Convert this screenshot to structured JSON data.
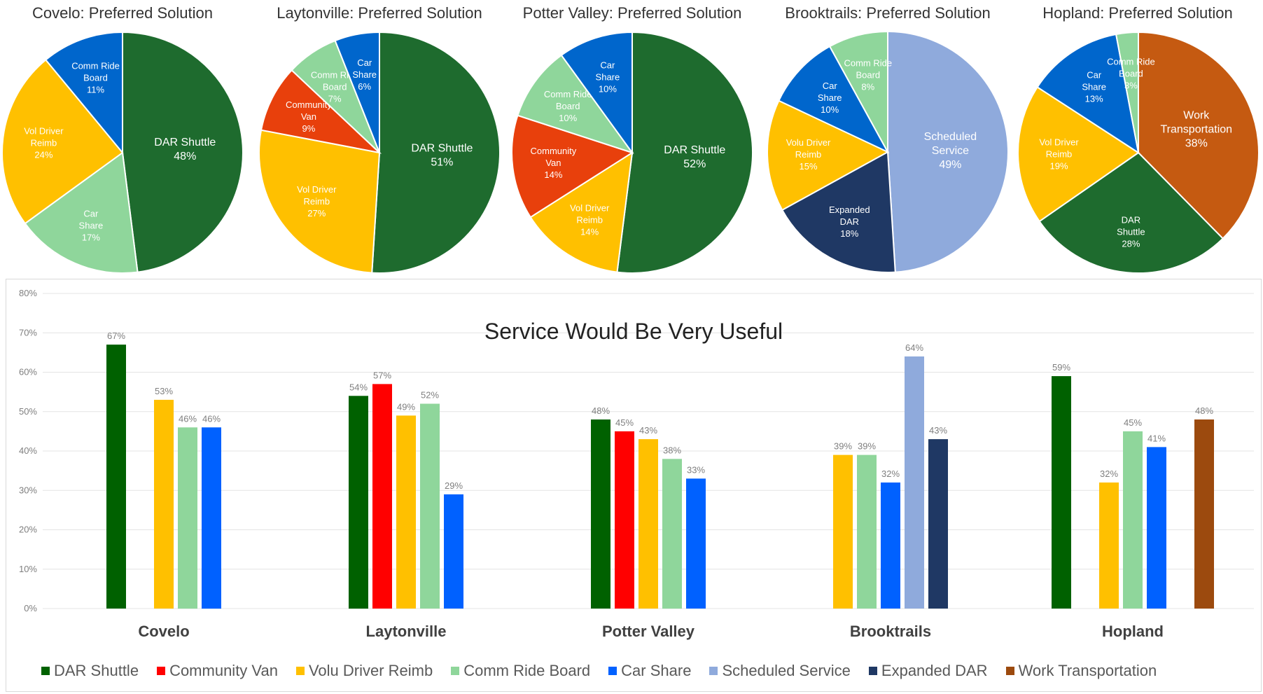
{
  "chart_data": [
    {
      "type": "pie",
      "title": "Covelo: Preferred Solution",
      "slices": [
        {
          "label": "DAR Shuttle",
          "value": 48,
          "display": "48%",
          "color": "#1e6b2e"
        },
        {
          "label": "Car Share",
          "value": 17,
          "display": "17%",
          "color": "#8fd69b"
        },
        {
          "label": "Vol Driver Reimb",
          "value": 24,
          "display": "24%",
          "color": "#ffc000"
        },
        {
          "label": "Comm Ride Board",
          "value": 11,
          "display": "11%",
          "color": "#0066cc"
        }
      ]
    },
    {
      "type": "pie",
      "title": "Laytonville: Preferred Solution",
      "slices": [
        {
          "label": "DAR Shuttle",
          "value": 51,
          "display": "51%",
          "color": "#1e6b2e"
        },
        {
          "label": "Vol Driver Reimb",
          "value": 27,
          "display": "27%",
          "color": "#ffc000"
        },
        {
          "label": "Community Van",
          "value": 9,
          "display": "9%",
          "color": "#e8400c"
        },
        {
          "label": "Comm Ride Board",
          "value": 7,
          "display": "7%",
          "color": "#8fd69b"
        },
        {
          "label": "Car Share",
          "value": 6,
          "display": "6%",
          "color": "#0066cc"
        }
      ]
    },
    {
      "type": "pie",
      "title": "Potter Valley: Preferred Solution",
      "slices": [
        {
          "label": "DAR Shuttle",
          "value": 52,
          "display": "52%",
          "color": "#1e6b2e"
        },
        {
          "label": "Vol Driver Reimb",
          "value": 14,
          "display": "14%",
          "color": "#ffc000"
        },
        {
          "label": "Community Van",
          "value": 14,
          "display": "14%",
          "color": "#e8400c"
        },
        {
          "label": "Comm Ride Board",
          "value": 10,
          "display": "10%",
          "color": "#8fd69b"
        },
        {
          "label": "Car Share",
          "value": 10,
          "display": "10%",
          "color": "#0066cc"
        }
      ]
    },
    {
      "type": "pie",
      "title": "Brooktrails: Preferred Solution",
      "slices": [
        {
          "label": "Scheduled Service",
          "value": 49,
          "display": "49%",
          "color": "#8faadc"
        },
        {
          "label": "Expanded DAR",
          "value": 18,
          "display": "18%",
          "color": "#1f3864"
        },
        {
          "label": "Volu Driver Reimb",
          "value": 15,
          "display": "15%",
          "color": "#ffc000"
        },
        {
          "label": "Car Share",
          "value": 10,
          "display": "10%",
          "color": "#0066cc"
        },
        {
          "label": "Comm Ride Board",
          "value": 8,
          "display": "8%",
          "color": "#8fd69b"
        }
      ]
    },
    {
      "type": "pie",
      "title": "Hopland: Preferred Solution",
      "slices": [
        {
          "label": "Work Transportation",
          "value": 38,
          "display": "38%",
          "color": "#c55a11"
        },
        {
          "label": "DAR Shuttle",
          "value": 28,
          "display": "28%",
          "color": "#1e6b2e"
        },
        {
          "label": "Vol Driver Reimb",
          "value": 19,
          "display": "19%",
          "color": "#ffc000"
        },
        {
          "label": "Car Share",
          "value": 13,
          "display": "13%",
          "color": "#0066cc"
        },
        {
          "label": "Comm Ride Board",
          "value": 3,
          "display": "3%",
          "color": "#8fd69b"
        }
      ]
    },
    {
      "type": "bar",
      "title": "Service Would Be Very Useful",
      "categories": [
        "Covelo",
        "Laytonville",
        "Potter Valley",
        "Brooktrails",
        "Hopland"
      ],
      "ylim": [
        0,
        80
      ],
      "yticks": [
        "0%",
        "10%",
        "20%",
        "30%",
        "40%",
        "50%",
        "60%",
        "70%",
        "80%"
      ],
      "grid": true,
      "legend_position": "bottom",
      "series": [
        {
          "name": "DAR Shuttle",
          "color": "#006100",
          "values": [
            67,
            54,
            48,
            null,
            59
          ]
        },
        {
          "name": "Community Van",
          "color": "#ff0000",
          "values": [
            null,
            57,
            45,
            null,
            null
          ]
        },
        {
          "name": "Volu Driver Reimb",
          "color": "#ffc000",
          "values": [
            53,
            49,
            43,
            39,
            32
          ]
        },
        {
          "name": "Comm Ride Board",
          "color": "#8fd69b",
          "values": [
            46,
            52,
            38,
            39,
            45
          ]
        },
        {
          "name": "Car Share",
          "color": "#0061ff",
          "values": [
            46,
            29,
            33,
            32,
            41
          ]
        },
        {
          "name": "Scheduled Service",
          "color": "#8faadc",
          "values": [
            null,
            null,
            null,
            64,
            null
          ]
        },
        {
          "name": "Expanded DAR",
          "color": "#1f3864",
          "values": [
            null,
            null,
            null,
            43,
            null
          ]
        },
        {
          "name": "Work Transportation",
          "color": "#9c4a0e",
          "values": [
            null,
            null,
            null,
            null,
            48
          ]
        }
      ]
    }
  ]
}
